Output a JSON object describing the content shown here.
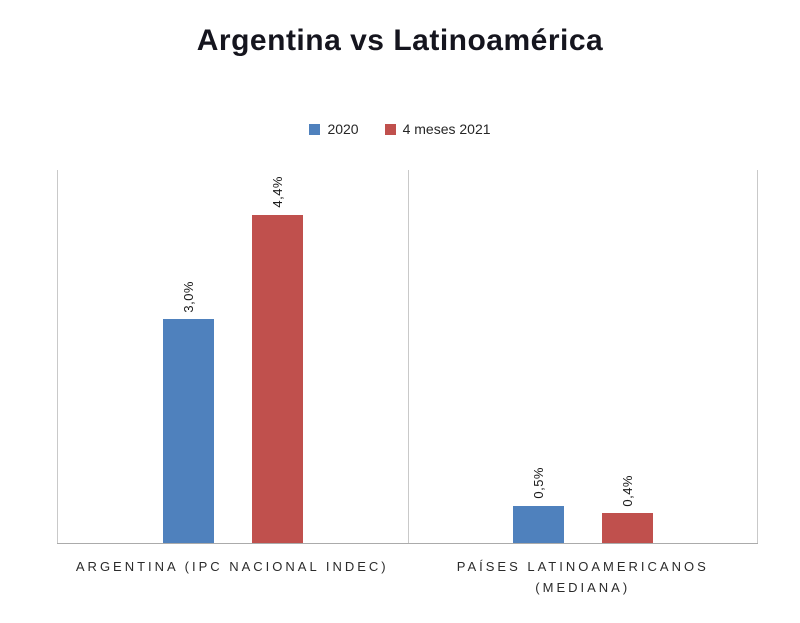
{
  "title": "Argentina vs Latinoamérica",
  "chart_data": {
    "type": "bar",
    "title": "Argentina vs Latinoamérica",
    "categories": [
      "ARGENTINA  (IPC NACIONAL INDEC)",
      "PAÍSES LATINOAMERICANOS\n(MEDIANA)"
    ],
    "series": [
      {
        "name": "2020",
        "color": "#4F81BD",
        "values": [
          3.0,
          0.5
        ],
        "labels": [
          "3,0%",
          "0,5%"
        ]
      },
      {
        "name": "4 meses 2021",
        "color": "#C0504D",
        "values": [
          4.4,
          0.4
        ],
        "labels": [
          "4,4%",
          "0,4%"
        ]
      }
    ],
    "xlabel": "",
    "ylabel": "",
    "ylim": [
      0,
      5
    ],
    "grid": false,
    "legend_position": "top",
    "data_label_rotation": -90,
    "value_suffix": "%"
  }
}
